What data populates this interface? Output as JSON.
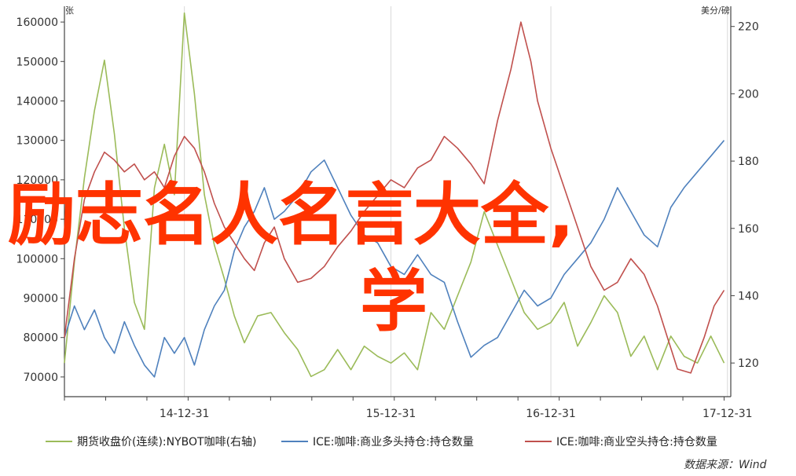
{
  "overlay": {
    "line1": "励志名人名言大全,",
    "line2": "学"
  },
  "chart_data": {
    "type": "line",
    "y_left_unit": "张",
    "y_right_unit": "美分/磅",
    "ylim_left": [
      65000,
      164000
    ],
    "ylim_right": [
      110,
      226
    ],
    "y_left_ticks": [
      "70000",
      "80000",
      "90000",
      "100000",
      "110000",
      "120000",
      "130000",
      "140000",
      "150000",
      "160000"
    ],
    "y_right_ticks": [
      "120",
      "140",
      "160",
      "180",
      "200",
      "220"
    ],
    "x_ticks": [
      "14-12-31",
      "15-12-31",
      "16-12-31",
      "17-12-31"
    ],
    "x_positions": [
      0.18,
      0.49,
      0.73,
      0.995
    ],
    "source_text": "数据来源：Wind",
    "grid": true,
    "series": [
      {
        "name": "期货收盘价(连续):NYBOT咖啡(右轴)",
        "axis": "right",
        "color": "#9bbb59",
        "values": [
          [
            0.0,
            120
          ],
          [
            0.015,
            150
          ],
          [
            0.03,
            175
          ],
          [
            0.045,
            195
          ],
          [
            0.06,
            210
          ],
          [
            0.075,
            188
          ],
          [
            0.09,
            160
          ],
          [
            0.105,
            138
          ],
          [
            0.12,
            130
          ],
          [
            0.135,
            172
          ],
          [
            0.15,
            185
          ],
          [
            0.165,
            170
          ],
          [
            0.18,
            224
          ],
          [
            0.195,
            200
          ],
          [
            0.21,
            170
          ],
          [
            0.225,
            155
          ],
          [
            0.24,
            145
          ],
          [
            0.255,
            134
          ],
          [
            0.27,
            126
          ],
          [
            0.29,
            134
          ],
          [
            0.31,
            135
          ],
          [
            0.33,
            129
          ],
          [
            0.35,
            124
          ],
          [
            0.37,
            116
          ],
          [
            0.39,
            118
          ],
          [
            0.41,
            124
          ],
          [
            0.43,
            118
          ],
          [
            0.45,
            125
          ],
          [
            0.47,
            122
          ],
          [
            0.49,
            120
          ],
          [
            0.51,
            123
          ],
          [
            0.53,
            118
          ],
          [
            0.55,
            135
          ],
          [
            0.57,
            130
          ],
          [
            0.59,
            140
          ],
          [
            0.61,
            150
          ],
          [
            0.63,
            165
          ],
          [
            0.65,
            155
          ],
          [
            0.67,
            145
          ],
          [
            0.69,
            135
          ],
          [
            0.71,
            130
          ],
          [
            0.73,
            132
          ],
          [
            0.75,
            138
          ],
          [
            0.77,
            125
          ],
          [
            0.79,
            132
          ],
          [
            0.81,
            140
          ],
          [
            0.83,
            135
          ],
          [
            0.85,
            122
          ],
          [
            0.87,
            128
          ],
          [
            0.89,
            118
          ],
          [
            0.91,
            128
          ],
          [
            0.93,
            122
          ],
          [
            0.95,
            120
          ],
          [
            0.97,
            128
          ],
          [
            0.99,
            120
          ]
        ]
      },
      {
        "name": "ICE:咖啡:商业多头持仓:持仓数量",
        "axis": "left",
        "color": "#4f81bd",
        "values": [
          [
            0.0,
            80000
          ],
          [
            0.015,
            88000
          ],
          [
            0.03,
            82000
          ],
          [
            0.045,
            87000
          ],
          [
            0.06,
            80000
          ],
          [
            0.075,
            76000
          ],
          [
            0.09,
            84000
          ],
          [
            0.105,
            78000
          ],
          [
            0.12,
            73000
          ],
          [
            0.135,
            70000
          ],
          [
            0.15,
            80000
          ],
          [
            0.165,
            76000
          ],
          [
            0.18,
            80000
          ],
          [
            0.195,
            73000
          ],
          [
            0.21,
            82000
          ],
          [
            0.225,
            88000
          ],
          [
            0.24,
            92000
          ],
          [
            0.255,
            102000
          ],
          [
            0.27,
            108000
          ],
          [
            0.285,
            112000
          ],
          [
            0.3,
            118000
          ],
          [
            0.315,
            110000
          ],
          [
            0.33,
            112000
          ],
          [
            0.35,
            116000
          ],
          [
            0.37,
            122000
          ],
          [
            0.39,
            125000
          ],
          [
            0.41,
            118000
          ],
          [
            0.43,
            111000
          ],
          [
            0.45,
            106000
          ],
          [
            0.47,
            104000
          ],
          [
            0.49,
            98000
          ],
          [
            0.51,
            96000
          ],
          [
            0.53,
            101000
          ],
          [
            0.55,
            96000
          ],
          [
            0.57,
            94000
          ],
          [
            0.59,
            84000
          ],
          [
            0.61,
            75000
          ],
          [
            0.63,
            78000
          ],
          [
            0.65,
            80000
          ],
          [
            0.67,
            86000
          ],
          [
            0.69,
            92000
          ],
          [
            0.71,
            88000
          ],
          [
            0.73,
            90000
          ],
          [
            0.75,
            96000
          ],
          [
            0.77,
            100000
          ],
          [
            0.79,
            104000
          ],
          [
            0.81,
            110000
          ],
          [
            0.83,
            118000
          ],
          [
            0.85,
            112000
          ],
          [
            0.87,
            106000
          ],
          [
            0.89,
            103000
          ],
          [
            0.91,
            113000
          ],
          [
            0.93,
            118000
          ],
          [
            0.95,
            122000
          ],
          [
            0.97,
            126000
          ],
          [
            0.99,
            130000
          ]
        ]
      },
      {
        "name": "ICE:咖啡:商业空头持仓:持仓数量",
        "axis": "left",
        "color": "#c0504d",
        "values": [
          [
            0.0,
            80000
          ],
          [
            0.015,
            100000
          ],
          [
            0.03,
            115000
          ],
          [
            0.045,
            122000
          ],
          [
            0.06,
            127000
          ],
          [
            0.075,
            125000
          ],
          [
            0.09,
            122000
          ],
          [
            0.105,
            124000
          ],
          [
            0.12,
            120000
          ],
          [
            0.135,
            122000
          ],
          [
            0.15,
            118000
          ],
          [
            0.165,
            126000
          ],
          [
            0.18,
            131000
          ],
          [
            0.195,
            128000
          ],
          [
            0.21,
            122000
          ],
          [
            0.225,
            114000
          ],
          [
            0.24,
            108000
          ],
          [
            0.255,
            104000
          ],
          [
            0.27,
            100000
          ],
          [
            0.285,
            97000
          ],
          [
            0.3,
            104000
          ],
          [
            0.315,
            108000
          ],
          [
            0.33,
            100000
          ],
          [
            0.35,
            94000
          ],
          [
            0.37,
            95000
          ],
          [
            0.39,
            98000
          ],
          [
            0.41,
            103000
          ],
          [
            0.43,
            107000
          ],
          [
            0.45,
            112000
          ],
          [
            0.47,
            116000
          ],
          [
            0.49,
            120000
          ],
          [
            0.51,
            118000
          ],
          [
            0.53,
            123000
          ],
          [
            0.55,
            125000
          ],
          [
            0.57,
            131000
          ],
          [
            0.59,
            128000
          ],
          [
            0.61,
            124000
          ],
          [
            0.63,
            119000
          ],
          [
            0.65,
            135000
          ],
          [
            0.67,
            148000
          ],
          [
            0.685,
            160000
          ],
          [
            0.7,
            150000
          ],
          [
            0.71,
            140000
          ],
          [
            0.73,
            128000
          ],
          [
            0.75,
            118000
          ],
          [
            0.77,
            108000
          ],
          [
            0.79,
            98000
          ],
          [
            0.81,
            92000
          ],
          [
            0.83,
            94000
          ],
          [
            0.85,
            100000
          ],
          [
            0.87,
            96000
          ],
          [
            0.89,
            88000
          ],
          [
            0.905,
            80000
          ],
          [
            0.92,
            72000
          ],
          [
            0.94,
            71000
          ],
          [
            0.96,
            80000
          ],
          [
            0.975,
            88000
          ],
          [
            0.99,
            92000
          ]
        ]
      }
    ]
  }
}
